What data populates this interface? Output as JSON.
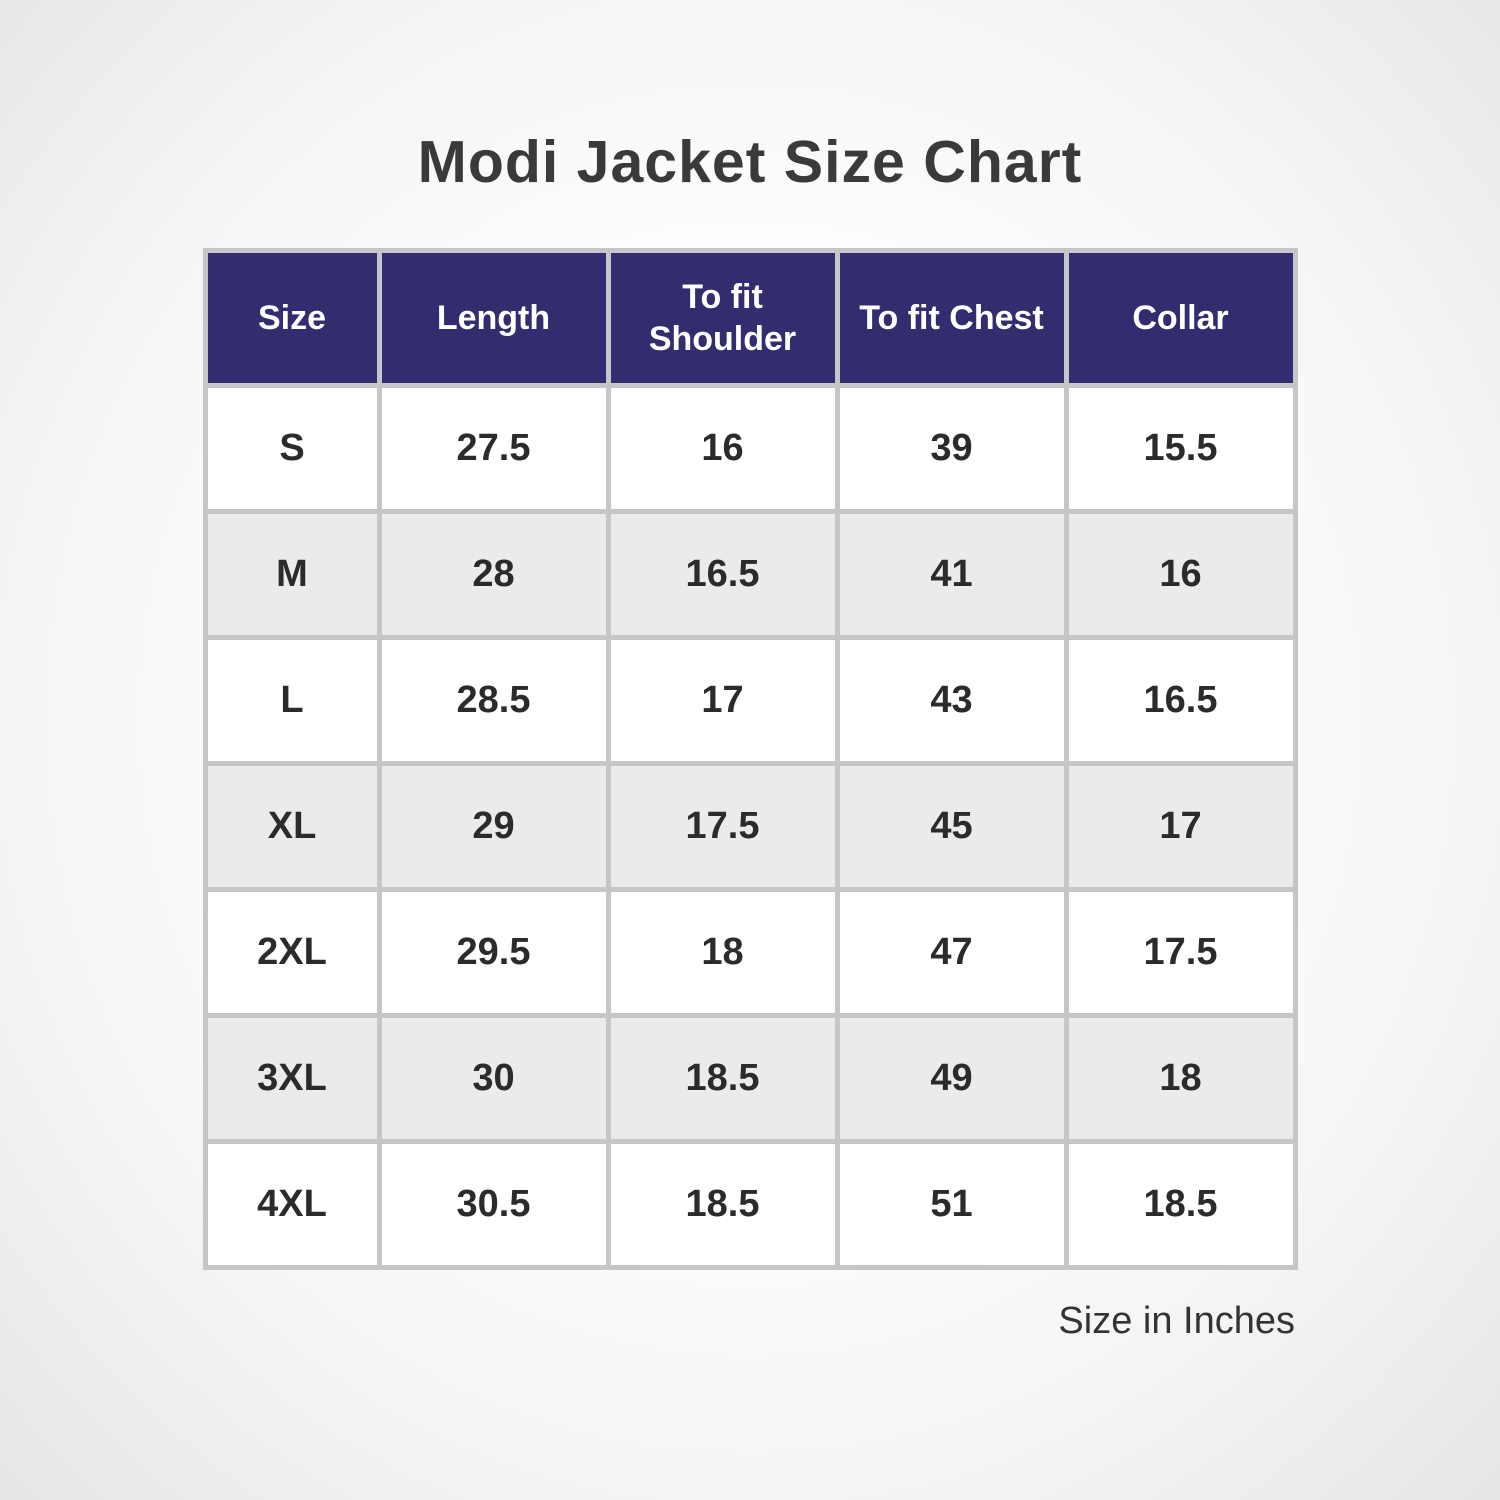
{
  "title": "Modi Jacket Size Chart",
  "colors": {
    "header_bg": "#332c6e",
    "header_text": "#ffffff",
    "row_bg": "#ffffff",
    "row_alt_bg": "#ebebeb",
    "cell_border": "#c6c6c9",
    "body_text": "#2b2b2b",
    "title_text": "#3a3a3a"
  },
  "chart_data": {
    "type": "table",
    "title": "Modi Jacket Size Chart",
    "columns": [
      "Size",
      "Length",
      "To fit Shoulder",
      "To fit Chest",
      "Collar"
    ],
    "rows": [
      [
        "S",
        "27.5",
        "16",
        "39",
        "15.5"
      ],
      [
        "M",
        "28",
        "16.5",
        "41",
        "16"
      ],
      [
        "L",
        "28.5",
        "17",
        "43",
        "16.5"
      ],
      [
        "XL",
        "29",
        "17.5",
        "45",
        "17"
      ],
      [
        "2XL",
        "29.5",
        "18",
        "47",
        "17.5"
      ],
      [
        "3XL",
        "30",
        "18.5",
        "49",
        "18"
      ],
      [
        "4XL",
        "30.5",
        "18.5",
        "51",
        "18.5"
      ]
    ],
    "unit_note": "Size in Inches"
  }
}
